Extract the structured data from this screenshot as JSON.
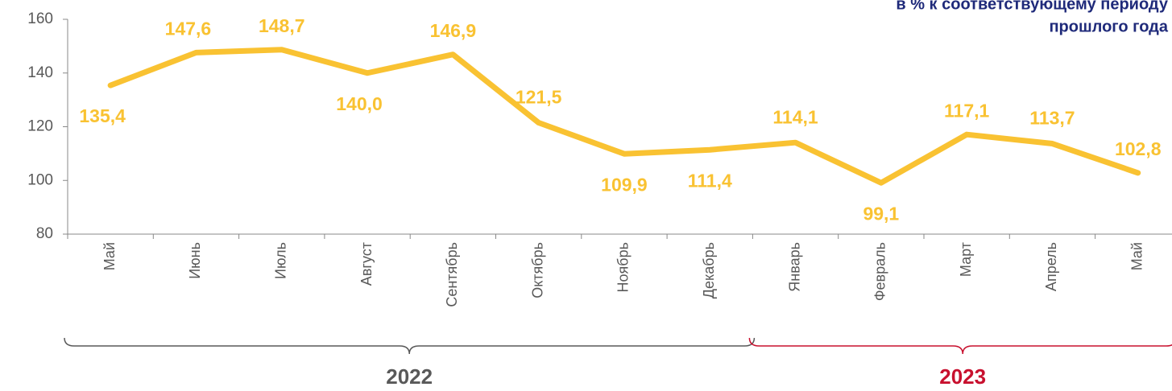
{
  "chart_data": {
    "type": "line",
    "subtitle": [
      "в % к соответствующему периоду",
      "прошлого года"
    ],
    "categories": [
      "Май",
      "Июнь",
      "Июль",
      "Август",
      "Сентябрь",
      "Октябрь",
      "Ноябрь",
      "Декабрь",
      "Январь",
      "Февраль",
      "Март",
      "Апрель",
      "Май"
    ],
    "series": [
      {
        "name": "в % к соответствующему периоду прошлого года",
        "color": "#f9c232",
        "values": [
          135.4,
          147.6,
          148.7,
          140.0,
          146.9,
          121.5,
          109.9,
          111.4,
          114.1,
          99.1,
          117.1,
          113.7,
          102.8
        ],
        "value_labels": [
          "135,4",
          "147,6",
          "148,7",
          "140,0",
          "146,9",
          "121,5",
          "109,9",
          "111,4",
          "114,1",
          "99,1",
          "117,1",
          "113,7",
          "102,8"
        ]
      }
    ],
    "ylim": [
      80,
      160
    ],
    "yticks": [
      80,
      100,
      120,
      140,
      160
    ],
    "groups": [
      {
        "name": "2022",
        "color": "#595959",
        "count": 8
      },
      {
        "name": "2023",
        "color": "#c8102e",
        "count": 5
      }
    ]
  }
}
